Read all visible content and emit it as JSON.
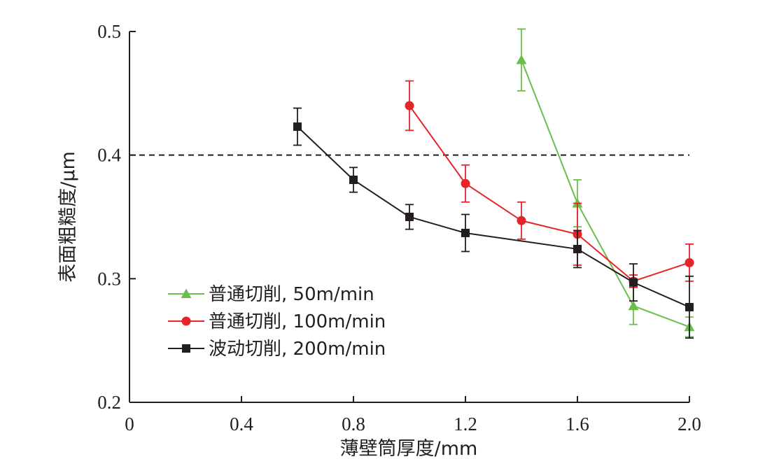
{
  "chart_data": {
    "type": "line",
    "xlabel": "薄壁筒厚度/mm",
    "ylabel": "表面粗糙度/μm",
    "xlim": [
      0,
      2.0
    ],
    "ylim": [
      0.2,
      0.5
    ],
    "xticks": [
      0,
      0.4,
      0.8,
      1.2,
      1.6,
      2.0
    ],
    "xtick_labels": [
      "0",
      "0.4",
      "0.8",
      "1.2",
      "1.6",
      "2.0"
    ],
    "yticks": [
      0.2,
      0.3,
      0.4,
      0.5
    ],
    "ytick_labels": [
      "0.2",
      "0.3",
      "0.4",
      "0.5"
    ],
    "reference_line": {
      "y": 0.4,
      "style": "dashed",
      "color": "#231f20"
    },
    "grid": false,
    "legend_position": "lower-left",
    "series": [
      {
        "name": "普通切削, 50m/min",
        "color": "#6abf4b",
        "marker": "triangle",
        "x": [
          1.4,
          1.6,
          1.8,
          2.0
        ],
        "y": [
          0.477,
          0.361,
          0.278,
          0.261
        ],
        "err": [
          0.025,
          0.019,
          0.015,
          0.008
        ]
      },
      {
        "name": "普通切削, 100m/min",
        "color": "#e5252a",
        "marker": "circle",
        "x": [
          1.0,
          1.2,
          1.4,
          1.6,
          1.8,
          2.0
        ],
        "y": [
          0.44,
          0.377,
          0.347,
          0.336,
          0.298,
          0.313
        ],
        "err": [
          0.02,
          0.015,
          0.015,
          0.025,
          0.005,
          0.015
        ]
      },
      {
        "name": "波动切削, 200m/min",
        "color": "#231f20",
        "marker": "square",
        "x": [
          0.6,
          0.8,
          1.0,
          1.2,
          1.6,
          1.8,
          2.0
        ],
        "y": [
          0.423,
          0.38,
          0.35,
          0.337,
          0.324,
          0.297,
          0.277
        ],
        "err": [
          0.015,
          0.01,
          0.01,
          0.015,
          0.015,
          0.015,
          0.025
        ]
      }
    ]
  }
}
